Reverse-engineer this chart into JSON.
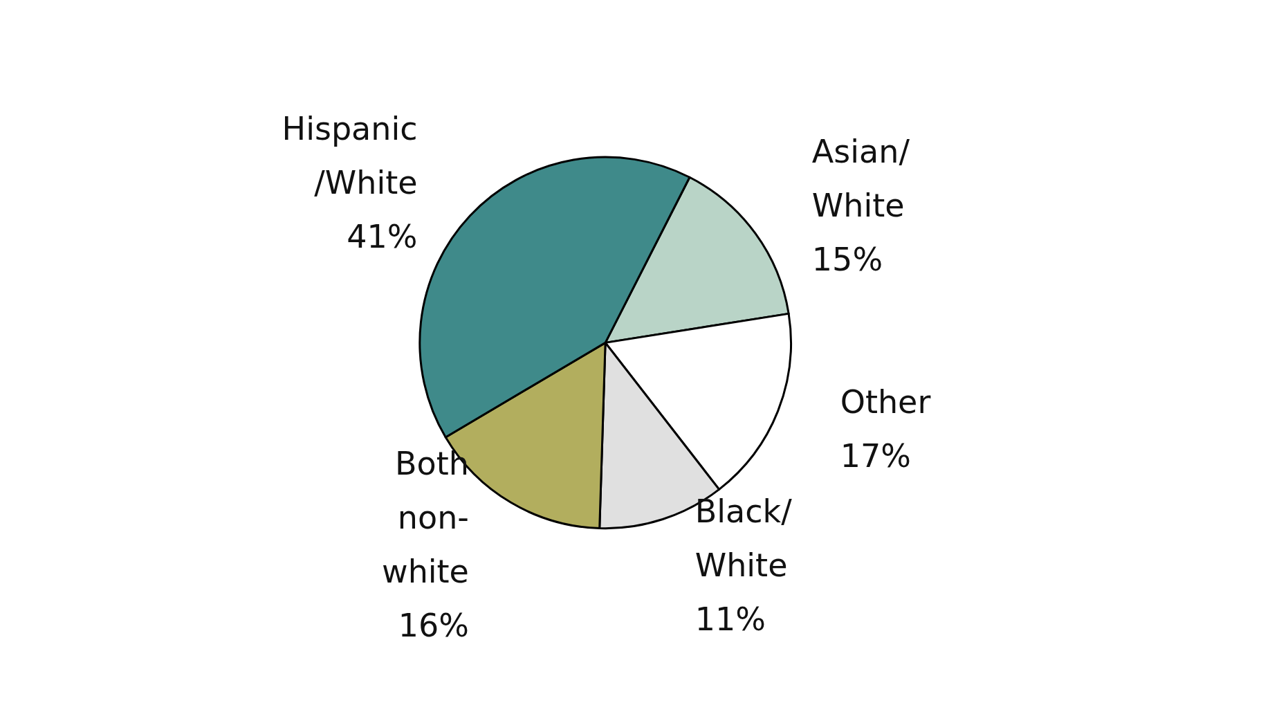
{
  "chart_data": {
    "type": "pie",
    "categories": [
      "Asian/\nWhite",
      "Other",
      "Black/\nWhite",
      "Both\nnon-\nwhite",
      "Hispanic\n/White"
    ],
    "values": [
      15,
      17,
      11,
      16,
      41
    ],
    "colors": [
      "#b9d4c7",
      "#ffffff",
      "#e0e0e0",
      "#b2ae5e",
      "#3f8a8a"
    ],
    "value_labels": [
      "15%",
      "17%",
      "11%",
      "16%",
      "41%"
    ],
    "legend": false
  }
}
